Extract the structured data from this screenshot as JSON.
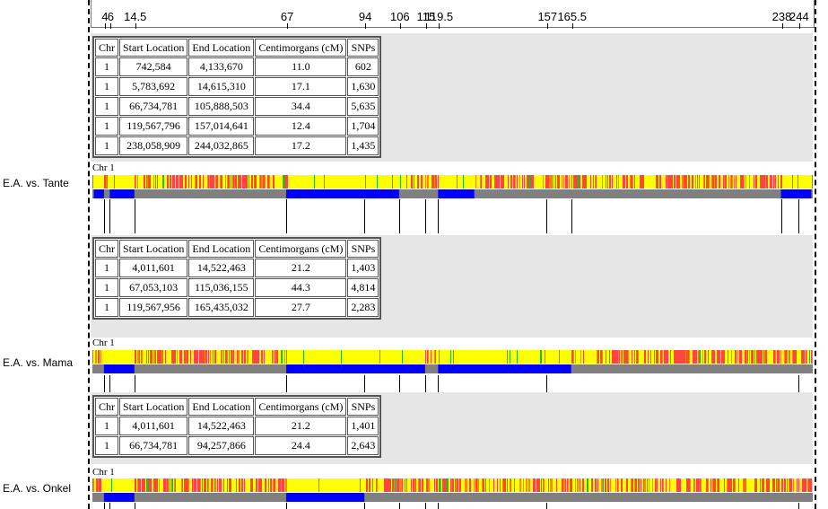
{
  "chart_data": {
    "type": "table",
    "ruler": {
      "min": 0,
      "max": 249,
      "ticks": [
        4,
        6,
        14.5,
        67,
        94,
        106,
        115,
        119.5,
        157,
        165.5,
        238,
        244
      ],
      "tick_labels": [
        "4",
        "6",
        "14.5",
        "67",
        "94",
        "106",
        "115",
        "119.5",
        "157",
        "165.5",
        "238",
        "244"
      ]
    },
    "comparisons": [
      {
        "label": "E.A. vs. Tante",
        "chromosome_label": "Chr 1",
        "columns": [
          "Chr",
          "Start Location",
          "End Location",
          "Centimorgans (cM)",
          "SNPs"
        ],
        "rows": [
          [
            "1",
            "742,584",
            "4,133,670",
            "11.0",
            "602"
          ],
          [
            "1",
            "5,783,692",
            "14,615,310",
            "17.1",
            "1,630"
          ],
          [
            "1",
            "66,734,781",
            "105,888,503",
            "34.4",
            "5,635"
          ],
          [
            "1",
            "119,567,796",
            "157,014,641",
            "12.4",
            "1,704"
          ],
          [
            "1",
            "238,058,909",
            "244,032,865",
            "17.2",
            "1,435"
          ]
        ],
        "segments_cm": [
          [
            0.5,
            4
          ],
          [
            6,
            14.5
          ],
          [
            67,
            106
          ],
          [
            119.5,
            132
          ],
          [
            238,
            248.5
          ]
        ]
      },
      {
        "label": "E.A. vs. Mama",
        "chromosome_label": "Chr 1",
        "columns": [
          "Chr",
          "Start Location",
          "End Location",
          "Centimorgans (cM)",
          "SNPs"
        ],
        "rows": [
          [
            "1",
            "4,011,601",
            "14,522,463",
            "21.2",
            "1,403"
          ],
          [
            "1",
            "67,053,103",
            "115,036,155",
            "44.3",
            "4,814"
          ],
          [
            "1",
            "119,567,956",
            "165,435,032",
            "27.7",
            "2,283"
          ]
        ],
        "segments_cm": [
          [
            4,
            14.5
          ],
          [
            67,
            115
          ],
          [
            119.5,
            165.5
          ]
        ]
      },
      {
        "label": "E.A. vs. Onkel",
        "chromosome_label": "Chr 1",
        "columns": [
          "Chr",
          "Start Location",
          "End Location",
          "Centimorgans (cM)",
          "SNPs"
        ],
        "rows": [
          [
            "1",
            "4,011,601",
            "14,522,463",
            "21.2",
            "1,401"
          ],
          [
            "1",
            "66,734,781",
            "94,257,866",
            "24.4",
            "2,643"
          ]
        ],
        "segments_cm": [
          [
            4,
            14.5
          ],
          [
            67,
            94
          ]
        ]
      }
    ],
    "colors": {
      "half_match": "#ffff00",
      "no_match": "#ff4444",
      "no_match_alt": "#ff8800",
      "full_match": "#22bb22",
      "shared_segment": "#0000ff",
      "not_shared": "#808080"
    }
  }
}
